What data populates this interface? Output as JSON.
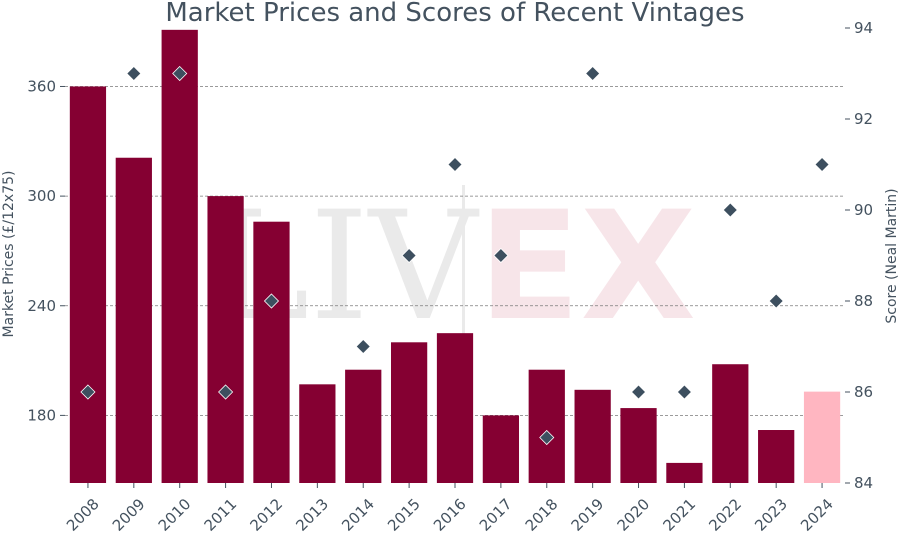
{
  "chart_data": {
    "type": "bar",
    "title": "Market Prices and Scores of Recent Vintages",
    "ylabel": "Market Prices (£/12x75)",
    "y2label": "Score (Neal Martin)",
    "categories": [
      "2008",
      "2009",
      "2010",
      "2011",
      "2012",
      "2013",
      "2014",
      "2015",
      "2016",
      "2017",
      "2018",
      "2019",
      "2020",
      "2021",
      "2022",
      "2023",
      "2024"
    ],
    "series": [
      {
        "kind": "bar",
        "axis": "left",
        "values": [
          360,
          321,
          391,
          300,
          286,
          197,
          205,
          220,
          225,
          180,
          205,
          194,
          184,
          154,
          208,
          172,
          193
        ],
        "color": "#850032",
        "highlight_color": "#ffb6c1",
        "highlight_index": 16
      },
      {
        "kind": "scatter",
        "axis": "right",
        "marker": "diamond",
        "values": [
          86,
          93,
          93,
          86,
          88,
          null,
          87,
          89,
          91,
          89,
          85,
          93,
          86,
          86,
          90,
          88,
          91
        ],
        "color": "#3d4f5f"
      }
    ],
    "ylim": [
      143,
      392
    ],
    "yticks": [
      180,
      240,
      300,
      360
    ],
    "y2lim": [
      84,
      94
    ],
    "y2ticks": [
      84,
      86,
      88,
      90,
      92,
      94
    ],
    "grid": "horizontal dashed",
    "watermark": {
      "left": "LIV",
      "right": "EX"
    }
  }
}
